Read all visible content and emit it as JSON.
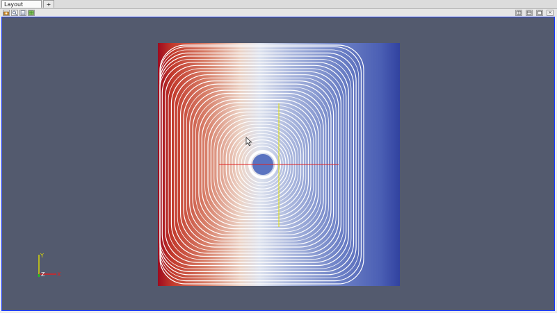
{
  "tabs": {
    "active_label": "Layout #1",
    "close_glyph": "✕",
    "add_glyph": "+"
  },
  "toolbar": {
    "left_icons": [
      "camera-icon",
      "zoom-icon",
      "save-icon",
      "grid-icon"
    ],
    "right_icons": [
      "split-horizontal-icon",
      "split-vertical-icon",
      "maximize-icon",
      "close-icon"
    ],
    "close_glyph": "×"
  },
  "orientation_axes": {
    "y_label": "Y",
    "z_label": "Z",
    "x_label": "X"
  },
  "colors": {
    "background": "#535a6e",
    "viewport_border": "#1b3cff",
    "colormap_low": "#3b4cc0",
    "colormap_mid": "#dddddd",
    "colormap_high": "#b40426",
    "streamline": "#ffffff",
    "x_axis": "#e02020",
    "y_axis": "#e0e000",
    "z_axis": "#20c020"
  }
}
